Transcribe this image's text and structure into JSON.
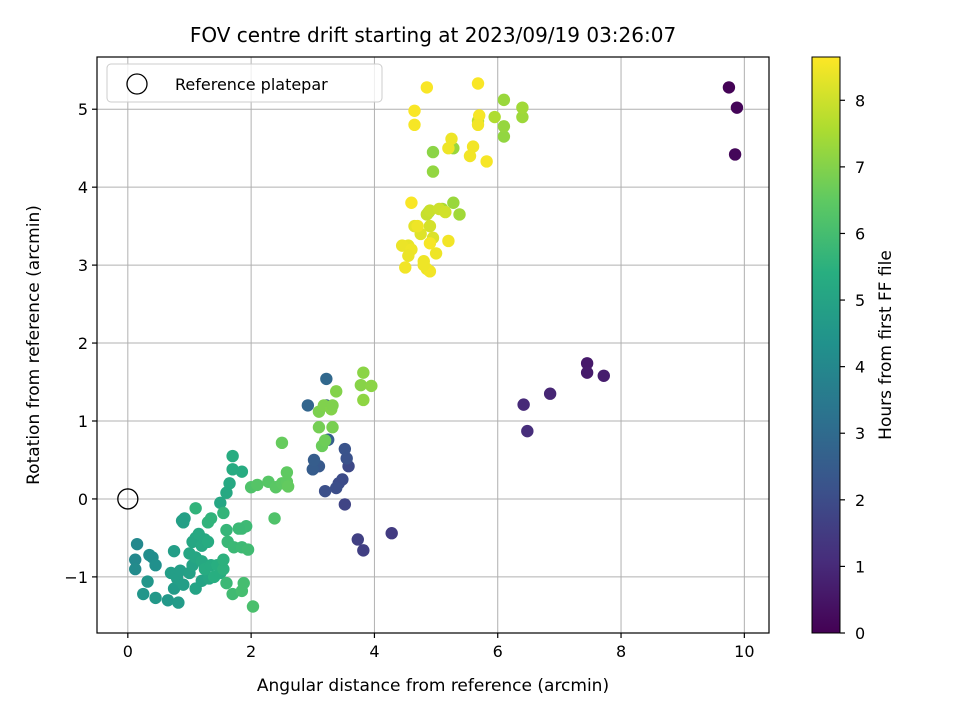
{
  "chart_data": {
    "type": "scatter",
    "title": "FOV centre drift starting at 2023/09/19 03:26:07",
    "xlabel": "Angular distance from reference (arcmin)",
    "ylabel": "Rotation from reference (arcmin)",
    "xlim": [
      -0.5,
      10.4
    ],
    "ylim": [
      -1.72,
      5.67
    ],
    "xticks": [
      0,
      2,
      4,
      6,
      8,
      10
    ],
    "yticks": [
      -1,
      0,
      1,
      2,
      3,
      4,
      5
    ],
    "grid": true,
    "legend": {
      "location": "upper-left",
      "entries": [
        "Reference platepar"
      ]
    },
    "reference_point": {
      "x": 0,
      "y": 0,
      "label": "Reference platepar"
    },
    "colorbar": {
      "label": "Hours from first FF file",
      "range": [
        0,
        8.65
      ],
      "ticks": [
        0,
        1,
        2,
        3,
        4,
        5,
        6,
        7,
        8
      ],
      "colormap": "viridis"
    },
    "points": [
      [
        9.75,
        5.28,
        0.05
      ],
      [
        9.88,
        5.02,
        0.1
      ],
      [
        9.85,
        4.42,
        0.15
      ],
      [
        7.45,
        1.74,
        0.6
      ],
      [
        7.45,
        1.62,
        0.65
      ],
      [
        7.72,
        1.58,
        0.7
      ],
      [
        6.85,
        1.35,
        0.9
      ],
      [
        6.42,
        1.21,
        1.0
      ],
      [
        6.48,
        0.87,
        1.1
      ],
      [
        4.28,
        -0.44,
        1.5
      ],
      [
        3.82,
        -0.66,
        1.6
      ],
      [
        3.73,
        -0.52,
        1.65
      ],
      [
        3.52,
        -0.07,
        1.75
      ],
      [
        3.58,
        0.42,
        1.9
      ],
      [
        3.48,
        0.25,
        1.95
      ],
      [
        3.42,
        0.2,
        2.0
      ],
      [
        3.38,
        0.14,
        2.05
      ],
      [
        3.2,
        0.1,
        2.1
      ],
      [
        3.55,
        0.52,
        2.15
      ],
      [
        3.52,
        0.64,
        2.2
      ],
      [
        3.1,
        0.42,
        2.4
      ],
      [
        3.0,
        0.38,
        2.5
      ],
      [
        3.02,
        0.5,
        2.55
      ],
      [
        3.25,
        0.76,
        2.6
      ],
      [
        3.22,
        1.2,
        2.7
      ],
      [
        2.92,
        1.2,
        2.8
      ],
      [
        3.22,
        1.54,
        2.9
      ],
      [
        0.12,
        -0.78,
        4.0
      ],
      [
        0.12,
        -0.9,
        4.1
      ],
      [
        0.15,
        -0.58,
        4.0
      ],
      [
        0.35,
        -0.72,
        4.2
      ],
      [
        0.4,
        -0.75,
        4.2
      ],
      [
        0.45,
        -0.85,
        4.3
      ],
      [
        0.25,
        -1.22,
        4.5
      ],
      [
        0.32,
        -1.06,
        4.5
      ],
      [
        0.45,
        -1.27,
        4.6
      ],
      [
        0.65,
        -1.3,
        4.6
      ],
      [
        0.82,
        -1.33,
        4.7
      ],
      [
        0.75,
        -1.15,
        4.7
      ],
      [
        0.7,
        -0.95,
        4.8
      ],
      [
        0.8,
        -1.02,
        4.8
      ],
      [
        0.9,
        -1.1,
        4.8
      ],
      [
        0.85,
        -0.92,
        4.8
      ],
      [
        1.0,
        -0.95,
        4.9
      ],
      [
        1.1,
        -1.15,
        5.0
      ],
      [
        1.2,
        -1.05,
        5.0
      ],
      [
        1.32,
        -1.02,
        5.1
      ],
      [
        1.05,
        -0.85,
        5.0
      ],
      [
        0.9,
        -0.3,
        4.9
      ],
      [
        0.92,
        -0.25,
        4.9
      ],
      [
        0.88,
        -0.28,
        4.85
      ],
      [
        1.05,
        -0.55,
        5.1
      ],
      [
        1.1,
        -0.5,
        5.1
      ],
      [
        1.2,
        -0.6,
        5.2
      ],
      [
        1.15,
        -0.45,
        5.2
      ],
      [
        1.25,
        -0.52,
        5.2
      ],
      [
        1.3,
        -0.55,
        5.3
      ],
      [
        1.0,
        -0.7,
        5.1
      ],
      [
        1.1,
        -0.75,
        5.1
      ],
      [
        1.2,
        -0.8,
        5.2
      ],
      [
        1.25,
        -0.9,
        5.3
      ],
      [
        1.35,
        -0.85,
        5.3
      ],
      [
        1.4,
        -1.0,
        5.4
      ],
      [
        1.5,
        -0.95,
        5.4
      ],
      [
        1.45,
        -0.85,
        5.4
      ],
      [
        1.55,
        -0.9,
        5.5
      ],
      [
        1.55,
        -0.78,
        5.5
      ],
      [
        1.5,
        -0.05,
        5.1
      ],
      [
        1.6,
        0.08,
        5.2
      ],
      [
        1.65,
        0.2,
        5.2
      ],
      [
        1.7,
        0.38,
        5.3
      ],
      [
        1.85,
        0.35,
        5.3
      ],
      [
        1.7,
        0.55,
        5.35
      ],
      [
        1.35,
        -0.25,
        5.6
      ],
      [
        1.3,
        -0.3,
        5.6
      ],
      [
        1.1,
        -0.12,
        5.6
      ],
      [
        1.55,
        -0.18,
        5.65
      ],
      [
        1.6,
        -0.4,
        5.7
      ],
      [
        1.62,
        -0.55,
        5.75
      ],
      [
        1.72,
        -0.62,
        5.8
      ],
      [
        1.85,
        -0.62,
        5.85
      ],
      [
        1.95,
        -0.65,
        5.9
      ],
      [
        1.85,
        -0.38,
        5.85
      ],
      [
        1.92,
        -0.35,
        5.85
      ],
      [
        1.8,
        -0.38,
        5.8
      ],
      [
        1.7,
        -1.22,
        5.9
      ],
      [
        1.85,
        -1.18,
        6.0
      ],
      [
        1.88,
        -1.08,
        6.0
      ],
      [
        2.03,
        -1.38,
        6.1
      ],
      [
        1.6,
        -1.08,
        5.8
      ],
      [
        0.75,
        -0.67,
        4.8
      ],
      [
        2.0,
        0.15,
        6.2
      ],
      [
        2.1,
        0.18,
        6.3
      ],
      [
        2.28,
        0.22,
        6.35
      ],
      [
        2.4,
        0.15,
        6.4
      ],
      [
        2.5,
        0.2,
        6.45
      ],
      [
        2.58,
        0.22,
        6.5
      ],
      [
        2.6,
        0.16,
        6.55
      ],
      [
        2.58,
        0.34,
        6.5
      ],
      [
        2.38,
        -0.25,
        6.2
      ],
      [
        2.5,
        0.72,
        6.6
      ],
      [
        3.15,
        0.68,
        6.65
      ],
      [
        3.2,
        0.75,
        6.7
      ],
      [
        3.1,
        0.92,
        6.8
      ],
      [
        3.32,
        0.92,
        6.85
      ],
      [
        3.1,
        1.12,
        6.9
      ],
      [
        3.18,
        1.2,
        6.95
      ],
      [
        3.3,
        1.15,
        7.0
      ],
      [
        3.38,
        1.38,
        7.0
      ],
      [
        3.78,
        1.46,
        7.05
      ],
      [
        3.95,
        1.45,
        7.1
      ],
      [
        3.82,
        1.62,
        7.1
      ],
      [
        3.82,
        1.27,
        7.15
      ],
      [
        3.32,
        1.2,
        6.95
      ],
      [
        4.95,
        4.45,
        7.1
      ],
      [
        4.95,
        4.2,
        7.2
      ],
      [
        5.28,
        4.5,
        7.3
      ],
      [
        4.88,
        3.68,
        6.9
      ],
      [
        5.28,
        3.8,
        7.3
      ],
      [
        5.38,
        3.65,
        7.4
      ],
      [
        5.1,
        3.72,
        7.5
      ],
      [
        6.1,
        4.65,
        7.2
      ],
      [
        6.1,
        4.78,
        7.25
      ],
      [
        6.1,
        5.12,
        7.3
      ],
      [
        6.4,
        4.9,
        7.35
      ],
      [
        6.4,
        5.02,
        7.4
      ],
      [
        5.95,
        4.9,
        7.6
      ],
      [
        5.68,
        4.85,
        7.8
      ],
      [
        4.85,
        3.65,
        7.9
      ],
      [
        4.9,
        3.7,
        7.95
      ],
      [
        5.05,
        3.72,
        8.0
      ],
      [
        5.15,
        3.68,
        8.05
      ],
      [
        4.9,
        3.5,
        8.1
      ],
      [
        4.95,
        3.35,
        8.2
      ],
      [
        4.75,
        3.4,
        8.25
      ],
      [
        4.65,
        3.5,
        8.3
      ],
      [
        4.55,
        3.25,
        8.35
      ],
      [
        4.45,
        3.25,
        8.4
      ],
      [
        4.6,
        3.2,
        8.45
      ],
      [
        4.55,
        3.12,
        8.4
      ],
      [
        4.5,
        2.97,
        8.5
      ],
      [
        4.8,
        3.05,
        8.45
      ],
      [
        4.85,
        2.95,
        8.45
      ],
      [
        4.9,
        2.92,
        8.5
      ],
      [
        5.0,
        3.15,
        8.45
      ],
      [
        4.9,
        3.28,
        8.55
      ],
      [
        5.2,
        3.31,
        8.5
      ],
      [
        4.8,
        3.0,
        8.45
      ],
      [
        4.6,
        3.8,
        8.6
      ],
      [
        4.65,
        4.98,
        8.6
      ],
      [
        4.65,
        4.8,
        8.55
      ],
      [
        4.85,
        5.28,
        8.6
      ],
      [
        5.68,
        5.33,
        8.6
      ],
      [
        5.7,
        4.92,
        8.55
      ],
      [
        5.68,
        4.8,
        8.5
      ],
      [
        5.6,
        4.52,
        8.5
      ],
      [
        5.55,
        4.4,
        8.5
      ],
      [
        5.82,
        4.33,
        8.55
      ],
      [
        5.25,
        4.62,
        8.45
      ],
      [
        5.2,
        4.5,
        8.45
      ],
      [
        4.7,
        3.5,
        8.45
      ]
    ]
  }
}
